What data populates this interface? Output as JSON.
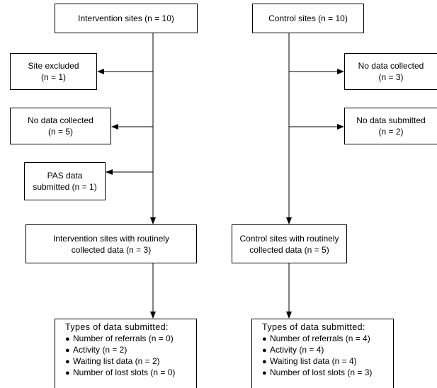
{
  "left": {
    "top": "Intervention sites (n = 10)",
    "excl1": [
      "Site excluded",
      "(n = 1)"
    ],
    "excl2": [
      "No data collected",
      "(n = 5)"
    ],
    "excl3": [
      "PAS data",
      "submitted (n = 1)"
    ],
    "mid": [
      "Intervention sites with routinely",
      "collected data (n = 3)"
    ],
    "types": {
      "title": "Types of data submitted:",
      "items": [
        "Number of referrals (n = 0)",
        "Activity (n = 2)",
        "Waiting list data (n = 2)",
        "Number of lost slots (n = 0)"
      ]
    }
  },
  "right": {
    "top": "Control sites (n = 10)",
    "excl1": [
      "No data collected",
      "(n = 3)"
    ],
    "excl2": [
      "No data submitted",
      "(n = 2)"
    ],
    "mid": [
      "Control sites with routinely",
      "collected data (n = 5)"
    ],
    "types": {
      "title": "Types of data submitted:",
      "items": [
        "Number of referrals (n = 4)",
        "Activity (n = 4)",
        "Waiting list data (n = 4)",
        "Number of lost slots (n = 3)"
      ]
    }
  }
}
